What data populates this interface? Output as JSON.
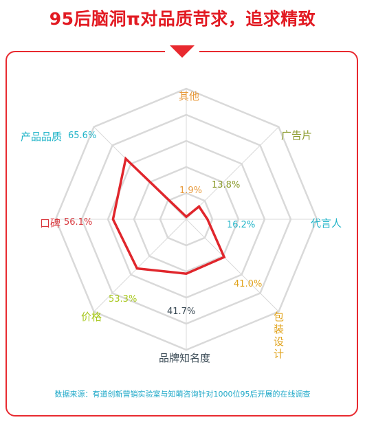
{
  "title": "95后脑洞π对品质苛求，追求精致",
  "source": "数据来源：有道创新营销实验室与知萌咨询针对1000位95后开展的在线调查",
  "colors": {
    "accent": "#e21a22",
    "data_line": "#e0262c",
    "grid": "#d9d9d9",
    "other": "#e89a3c",
    "ads": "#8a9a2a",
    "spokesperson": "#21b4c8",
    "packaging": "#e0a21a",
    "brand": "#3a4a55",
    "price": "#a8c81e",
    "reputation": "#d8343a",
    "quality": "#21b4c8"
  },
  "chart_data": {
    "type": "radar",
    "title": "",
    "axes": [
      "其他",
      "广告片",
      "代言人",
      "包装设计",
      "品牌知名度",
      "价格",
      "口碑",
      "产品品质"
    ],
    "series": [
      {
        "values": [
          1.9,
          13.8,
          16.2,
          41.0,
          41.7,
          53.3,
          56.1,
          65.6
        ]
      }
    ],
    "value_labels": [
      "1.9%",
      "13.8%",
      "16.2%",
      "41.0%",
      "41.7%",
      "53.3%",
      "56.1%",
      "65.6%"
    ],
    "range": [
      0,
      100
    ],
    "grid": true
  }
}
